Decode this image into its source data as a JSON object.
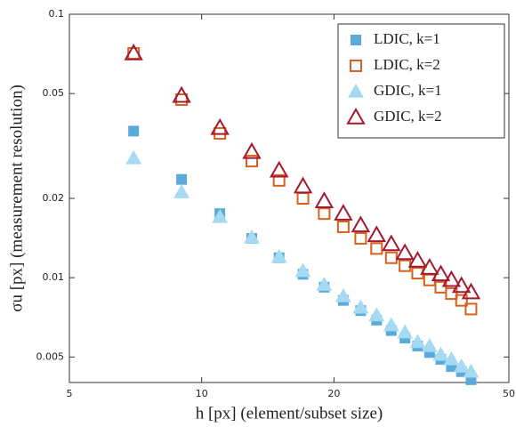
{
  "chart_data": {
    "type": "scatter",
    "xlabel": "h [px] (element/subset size)",
    "ylabel": "σu [px] (measurement resolution)",
    "log_x": true,
    "log_y": true,
    "xlim": [
      5,
      50
    ],
    "ylim": [
      0.004,
      0.1
    ],
    "xticks": [
      5,
      10,
      20,
      50
    ],
    "yticks": [
      0.005,
      0.01,
      0.02,
      0.05,
      0.1
    ],
    "legend": "upper right",
    "x": [
      7,
      9,
      11,
      13,
      15,
      17,
      19,
      21,
      23,
      25,
      27,
      29,
      31,
      33,
      35,
      37,
      39,
      41
    ],
    "series": [
      {
        "name": "LDIC, k=1",
        "color": "#5aaadc",
        "marker": "square",
        "filled": true,
        "values": [
          0.036,
          0.0236,
          0.0175,
          0.0141,
          0.0119,
          0.0103,
          0.0092,
          0.0082,
          0.0075,
          0.0069,
          0.0063,
          0.0059,
          0.0055,
          0.0052,
          0.0049,
          0.0046,
          0.0044,
          0.0041
        ]
      },
      {
        "name": "LDIC, k=2",
        "color": "#d9611e",
        "marker": "square",
        "filled": false,
        "values": [
          0.071,
          0.0474,
          0.0353,
          0.0277,
          0.0234,
          0.02,
          0.0175,
          0.0156,
          0.0141,
          0.0129,
          0.0119,
          0.0111,
          0.0104,
          0.0098,
          0.0092,
          0.0087,
          0.0082,
          0.0076
        ]
      },
      {
        "name": "GDIC, k=1",
        "color": "#a6d9f2",
        "marker": "triangle",
        "filled": true,
        "values": [
          0.0284,
          0.0211,
          0.017,
          0.0142,
          0.012,
          0.0106,
          0.0094,
          0.0085,
          0.0077,
          0.0072,
          0.0066,
          0.0062,
          0.0057,
          0.0055,
          0.0051,
          0.0049,
          0.0046,
          0.0044
        ]
      },
      {
        "name": "GDIC, k=2",
        "color": "#a3192e",
        "marker": "triangle",
        "filled": false,
        "values": [
          0.071,
          0.049,
          0.037,
          0.03,
          0.0255,
          0.0222,
          0.0195,
          0.0175,
          0.0158,
          0.0145,
          0.0134,
          0.0124,
          0.0116,
          0.0109,
          0.0103,
          0.0098,
          0.0093,
          0.0088
        ]
      }
    ]
  }
}
